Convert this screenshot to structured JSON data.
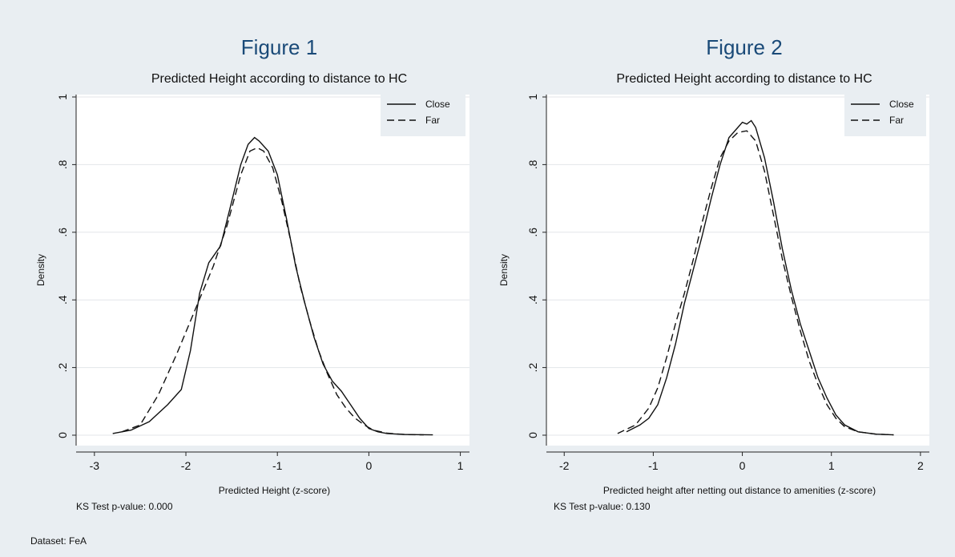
{
  "footer": {
    "dataset": "Dataset: FeA"
  },
  "chart_data": [
    {
      "type": "line",
      "figure_label": "Figure 1",
      "title": "Predicted Height according to distance to HC",
      "xlabel": "Predicted Height (z-score)",
      "ylabel": "Density",
      "note": "KS Test p-value: 0.000",
      "xlim": [
        -3.2,
        1.1
      ],
      "ylim": [
        0,
        1
      ],
      "xticks": [
        -3,
        -2,
        -1,
        0,
        1
      ],
      "xtick_labels": [
        "-3",
        "-2",
        "-1",
        "0",
        "1"
      ],
      "yticks": [
        0,
        0.2,
        0.4,
        0.6,
        0.8,
        1
      ],
      "ytick_labels": [
        "0",
        ".2",
        ".4",
        ".6",
        ".8",
        "1"
      ],
      "grid": true,
      "legend_position": "top-right",
      "series": [
        {
          "name": "Close",
          "dash": "solid",
          "x": [
            -2.8,
            -2.6,
            -2.4,
            -2.2,
            -2.05,
            -1.95,
            -1.85,
            -1.75,
            -1.62,
            -1.5,
            -1.4,
            -1.32,
            -1.25,
            -1.2,
            -1.1,
            -1.0,
            -0.9,
            -0.8,
            -0.7,
            -0.6,
            -0.5,
            -0.4,
            -0.3,
            -0.2,
            -0.1,
            0.0,
            0.1,
            0.2,
            0.4,
            0.7
          ],
          "y": [
            0.005,
            0.015,
            0.04,
            0.09,
            0.135,
            0.25,
            0.42,
            0.51,
            0.56,
            0.69,
            0.8,
            0.86,
            0.88,
            0.87,
            0.84,
            0.77,
            0.64,
            0.5,
            0.39,
            0.29,
            0.21,
            0.16,
            0.13,
            0.09,
            0.05,
            0.02,
            0.01,
            0.005,
            0.002,
            0.001
          ]
        },
        {
          "name": "Far",
          "dash": "dashed",
          "x": [
            -2.7,
            -2.5,
            -2.3,
            -2.1,
            -1.9,
            -1.7,
            -1.55,
            -1.4,
            -1.3,
            -1.22,
            -1.15,
            -1.05,
            -0.95,
            -0.85,
            -0.75,
            -0.65,
            -0.55,
            -0.45,
            -0.35,
            -0.25,
            -0.15,
            -0.05,
            0.05,
            0.2,
            0.4,
            0.6
          ],
          "y": [
            0.01,
            0.03,
            0.12,
            0.24,
            0.37,
            0.5,
            0.62,
            0.77,
            0.84,
            0.85,
            0.84,
            0.79,
            0.69,
            0.57,
            0.44,
            0.34,
            0.25,
            0.18,
            0.12,
            0.08,
            0.05,
            0.03,
            0.015,
            0.006,
            0.002,
            0.001
          ]
        }
      ]
    },
    {
      "type": "line",
      "figure_label": "Figure 2",
      "title": "Predicted Height according to distance to HC",
      "xlabel": "Predicted height after netting out distance to amenities (z-score)",
      "ylabel": "Density",
      "note": "KS Test p-value: 0.130",
      "xlim": [
        -2.2,
        2.1
      ],
      "ylim": [
        0,
        1
      ],
      "xticks": [
        -2,
        -1,
        0,
        1,
        2
      ],
      "xtick_labels": [
        "-2",
        "-1",
        "0",
        "1",
        "2"
      ],
      "yticks": [
        0,
        0.2,
        0.4,
        0.6,
        0.8,
        1
      ],
      "ytick_labels": [
        "0",
        ".2",
        ".4",
        ".6",
        ".8",
        "1"
      ],
      "grid": true,
      "legend_position": "top-right",
      "series": [
        {
          "name": "Close",
          "dash": "solid",
          "x": [
            -1.3,
            -1.15,
            -1.05,
            -0.95,
            -0.85,
            -0.75,
            -0.65,
            -0.55,
            -0.45,
            -0.35,
            -0.25,
            -0.15,
            -0.05,
            0.0,
            0.05,
            0.1,
            0.15,
            0.25,
            0.35,
            0.45,
            0.55,
            0.65,
            0.75,
            0.85,
            0.95,
            1.05,
            1.15,
            1.3,
            1.5,
            1.7
          ],
          "y": [
            0.01,
            0.03,
            0.05,
            0.09,
            0.17,
            0.27,
            0.39,
            0.49,
            0.59,
            0.7,
            0.8,
            0.88,
            0.91,
            0.925,
            0.92,
            0.93,
            0.91,
            0.82,
            0.69,
            0.55,
            0.43,
            0.33,
            0.25,
            0.17,
            0.11,
            0.06,
            0.03,
            0.01,
            0.003,
            0.001
          ]
        },
        {
          "name": "Far",
          "dash": "dashed",
          "x": [
            -1.4,
            -1.2,
            -1.05,
            -0.95,
            -0.85,
            -0.75,
            -0.65,
            -0.55,
            -0.45,
            -0.35,
            -0.25,
            -0.15,
            -0.05,
            0.05,
            0.15,
            0.25,
            0.35,
            0.45,
            0.55,
            0.65,
            0.75,
            0.85,
            0.95,
            1.05,
            1.15,
            1.3,
            1.5,
            1.7
          ],
          "y": [
            0.005,
            0.03,
            0.08,
            0.14,
            0.23,
            0.33,
            0.42,
            0.52,
            0.63,
            0.73,
            0.82,
            0.87,
            0.895,
            0.9,
            0.87,
            0.78,
            0.65,
            0.52,
            0.41,
            0.31,
            0.22,
            0.15,
            0.09,
            0.05,
            0.025,
            0.01,
            0.003,
            0.001
          ]
        }
      ]
    }
  ]
}
